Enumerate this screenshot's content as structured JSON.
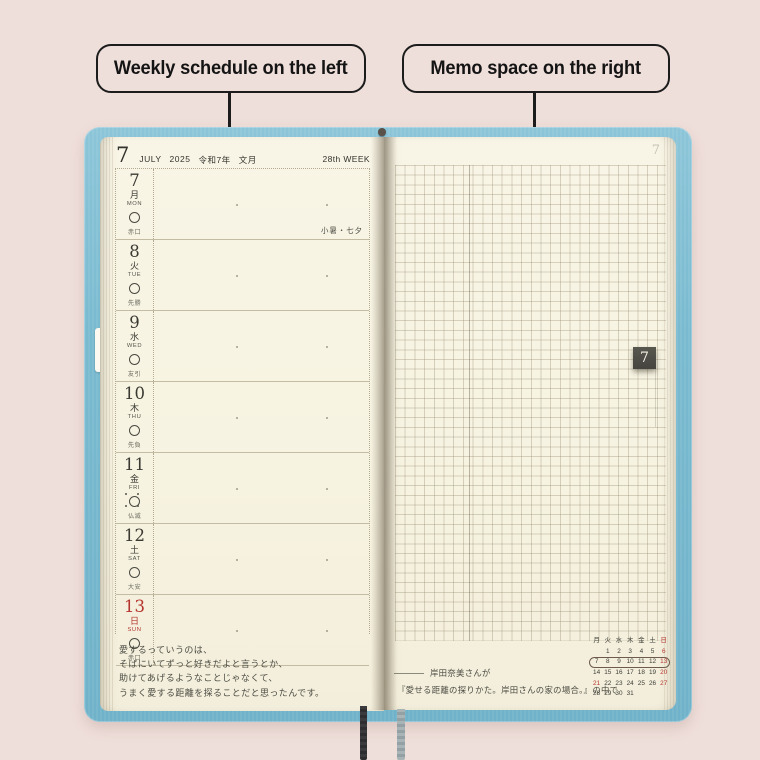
{
  "colors": {
    "background": "#efdfda",
    "cover_blue": "#79bad0",
    "page_cream": "#f7f3e1",
    "red": "#b5342e",
    "callout_ink": "#1c1c1c",
    "tab_gray": "#45443f"
  },
  "callouts": {
    "left_label": "Weekly schedule on the left",
    "right_label": "Memo space on the right"
  },
  "planner": {
    "left_page": {
      "header": {
        "month_num": "7",
        "month_name": "JULY",
        "year": "2025",
        "era": "令和7年",
        "jp_month": "文月",
        "week_label": "28th WEEK"
      },
      "days": [
        {
          "date": "7",
          "jp": "月",
          "en": "MON",
          "rokuyo": "赤口",
          "note": "小暑・七夕",
          "sunday": false,
          "full_moon": false
        },
        {
          "date": "8",
          "jp": "火",
          "en": "TUE",
          "rokuyo": "先勝",
          "note": "",
          "sunday": false,
          "full_moon": false
        },
        {
          "date": "9",
          "jp": "水",
          "en": "WED",
          "rokuyo": "友引",
          "note": "",
          "sunday": false,
          "full_moon": false
        },
        {
          "date": "10",
          "jp": "木",
          "en": "THU",
          "rokuyo": "先負",
          "note": "",
          "sunday": false,
          "full_moon": false
        },
        {
          "date": "11",
          "jp": "金",
          "en": "FRI",
          "rokuyo": "仏滅",
          "note": "",
          "sunday": false,
          "full_moon": true
        },
        {
          "date": "12",
          "jp": "土",
          "en": "SAT",
          "rokuyo": "大安",
          "note": "",
          "sunday": false,
          "full_moon": false
        },
        {
          "date": "13",
          "jp": "日",
          "en": "SUN",
          "rokuyo": "赤口",
          "note": "",
          "sunday": true,
          "full_moon": false
        }
      ],
      "quote": {
        "line1": "愛するっていうのは、",
        "line2": "そばにいてずっと好きだよと言うとか、",
        "line3": "助けてあげるようなことじゃなくて、",
        "line4": "うまく愛する距離を探ることだと思ったんです。"
      }
    },
    "right_page": {
      "month_tab": "7",
      "ghost_tab": "7",
      "mini_calendar": {
        "headers": [
          "月",
          "火",
          "水",
          "木",
          "金",
          "土",
          "日"
        ],
        "weeks": [
          [
            "",
            "1",
            "2",
            "3",
            "4",
            "5",
            "6"
          ],
          [
            "7",
            "8",
            "9",
            "10",
            "11",
            "12",
            "13"
          ],
          [
            "14",
            "15",
            "16",
            "17",
            "18",
            "19",
            "20"
          ],
          [
            "21",
            "22",
            "23",
            "24",
            "25",
            "26",
            "27"
          ],
          [
            "28",
            "29",
            "30",
            "31",
            "",
            "",
            ""
          ]
        ],
        "red_dates": [
          "6",
          "13",
          "20",
          "21",
          "27"
        ],
        "red_headers": [
          "日"
        ],
        "circled_week_index": 1
      },
      "attribution": {
        "line1": "岸田奈美さんが",
        "line2": "『愛せる距離の探りかた。岸田さんの家の場合。』の中で"
      }
    }
  }
}
